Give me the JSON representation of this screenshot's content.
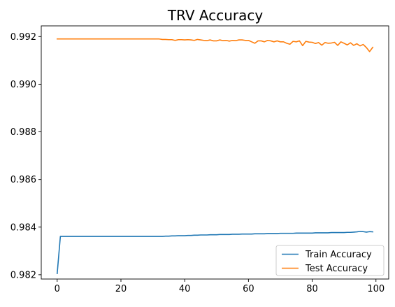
{
  "chart_data": {
    "type": "line",
    "title": "TRV Accuracy",
    "xlabel": "",
    "ylabel": "",
    "xlim": [
      -5,
      104
    ],
    "ylim": [
      0.98182,
      0.99245
    ],
    "xticks": [
      0,
      20,
      40,
      60,
      80,
      100
    ],
    "xtick_labels": [
      "0",
      "20",
      "40",
      "60",
      "80",
      "100"
    ],
    "yticks": [
      0.982,
      0.984,
      0.986,
      0.988,
      0.99,
      0.992
    ],
    "ytick_labels": [
      "0.982",
      "0.984",
      "0.986",
      "0.988",
      "0.990",
      "0.992"
    ],
    "grid": false,
    "legend_position": "lower right",
    "series": [
      {
        "name": "Train Accuracy",
        "color": "#1f77b4",
        "x": [
          0,
          1,
          2,
          3,
          4,
          5,
          6,
          7,
          8,
          9,
          10,
          11,
          12,
          13,
          14,
          15,
          16,
          17,
          18,
          19,
          20,
          21,
          22,
          23,
          24,
          25,
          26,
          27,
          28,
          29,
          30,
          31,
          32,
          33,
          34,
          35,
          36,
          37,
          38,
          39,
          40,
          41,
          42,
          43,
          44,
          45,
          46,
          47,
          48,
          49,
          50,
          51,
          52,
          53,
          54,
          55,
          56,
          57,
          58,
          59,
          60,
          61,
          62,
          63,
          64,
          65,
          66,
          67,
          68,
          69,
          70,
          71,
          72,
          73,
          74,
          75,
          76,
          77,
          78,
          79,
          80,
          81,
          82,
          83,
          84,
          85,
          86,
          87,
          88,
          89,
          90,
          91,
          92,
          93,
          94,
          95,
          96,
          97,
          98,
          99
        ],
        "values": [
          0.98205,
          0.98361,
          0.98361,
          0.98361,
          0.98361,
          0.98361,
          0.98361,
          0.98361,
          0.98361,
          0.98361,
          0.98361,
          0.98361,
          0.98361,
          0.98361,
          0.98361,
          0.98361,
          0.98361,
          0.98361,
          0.98361,
          0.98361,
          0.98361,
          0.98361,
          0.98361,
          0.98361,
          0.98361,
          0.98361,
          0.98361,
          0.98361,
          0.98361,
          0.98361,
          0.98361,
          0.98361,
          0.98361,
          0.98361,
          0.98362,
          0.98362,
          0.98363,
          0.98363,
          0.98364,
          0.98364,
          0.98364,
          0.98365,
          0.98365,
          0.98366,
          0.98366,
          0.98367,
          0.98367,
          0.98367,
          0.98368,
          0.98368,
          0.98368,
          0.98369,
          0.98369,
          0.98369,
          0.98369,
          0.9837,
          0.9837,
          0.9837,
          0.98371,
          0.98371,
          0.98371,
          0.98371,
          0.98372,
          0.98372,
          0.98372,
          0.98372,
          0.98373,
          0.98373,
          0.98373,
          0.98373,
          0.98374,
          0.98374,
          0.98374,
          0.98374,
          0.98374,
          0.98375,
          0.98375,
          0.98375,
          0.98375,
          0.98375,
          0.98375,
          0.98376,
          0.98376,
          0.98376,
          0.98376,
          0.98376,
          0.98377,
          0.98377,
          0.98377,
          0.98377,
          0.98377,
          0.98378,
          0.98378,
          0.98379,
          0.9838,
          0.98382,
          0.98381,
          0.98379,
          0.98381,
          0.9838
        ]
      },
      {
        "name": "Test Accuracy",
        "color": "#ff7f0e",
        "x": [
          0,
          1,
          2,
          3,
          4,
          5,
          6,
          7,
          8,
          9,
          10,
          11,
          12,
          13,
          14,
          15,
          16,
          17,
          18,
          19,
          20,
          21,
          22,
          23,
          24,
          25,
          26,
          27,
          28,
          29,
          30,
          31,
          32,
          33,
          34,
          35,
          36,
          37,
          38,
          39,
          40,
          41,
          42,
          43,
          44,
          45,
          46,
          47,
          48,
          49,
          50,
          51,
          52,
          53,
          54,
          55,
          56,
          57,
          58,
          59,
          60,
          61,
          62,
          63,
          64,
          65,
          66,
          67,
          68,
          69,
          70,
          71,
          72,
          73,
          74,
          75,
          76,
          77,
          78,
          79,
          80,
          81,
          82,
          83,
          84,
          85,
          86,
          87,
          88,
          89,
          90,
          91,
          92,
          93,
          94,
          95,
          96,
          97,
          98,
          99
        ],
        "values": [
          0.9919,
          0.9919,
          0.9919,
          0.9919,
          0.9919,
          0.9919,
          0.9919,
          0.9919,
          0.9919,
          0.9919,
          0.9919,
          0.9919,
          0.9919,
          0.9919,
          0.9919,
          0.9919,
          0.9919,
          0.9919,
          0.9919,
          0.9919,
          0.9919,
          0.9919,
          0.9919,
          0.9919,
          0.9919,
          0.9919,
          0.9919,
          0.9919,
          0.9919,
          0.9919,
          0.9919,
          0.9919,
          0.9919,
          0.99188,
          0.99188,
          0.99187,
          0.99187,
          0.99184,
          0.99187,
          0.99187,
          0.99186,
          0.99187,
          0.99186,
          0.99184,
          0.99188,
          0.99186,
          0.99184,
          0.99183,
          0.99186,
          0.99182,
          0.99182,
          0.99186,
          0.99183,
          0.99184,
          0.99181,
          0.99184,
          0.99183,
          0.99186,
          0.99186,
          0.99184,
          0.99184,
          0.99178,
          0.99172,
          0.99182,
          0.99182,
          0.99178,
          0.99184,
          0.99182,
          0.99178,
          0.99182,
          0.99178,
          0.99178,
          0.99172,
          0.99168,
          0.9918,
          0.99178,
          0.99182,
          0.99162,
          0.9918,
          0.99177,
          0.99176,
          0.99171,
          0.99175,
          0.99164,
          0.99175,
          0.99172,
          0.99173,
          0.99176,
          0.99163,
          0.99178,
          0.99172,
          0.99165,
          0.99174,
          0.99163,
          0.9917,
          0.99161,
          0.99167,
          0.99154,
          0.99137,
          0.99155
        ]
      }
    ]
  }
}
